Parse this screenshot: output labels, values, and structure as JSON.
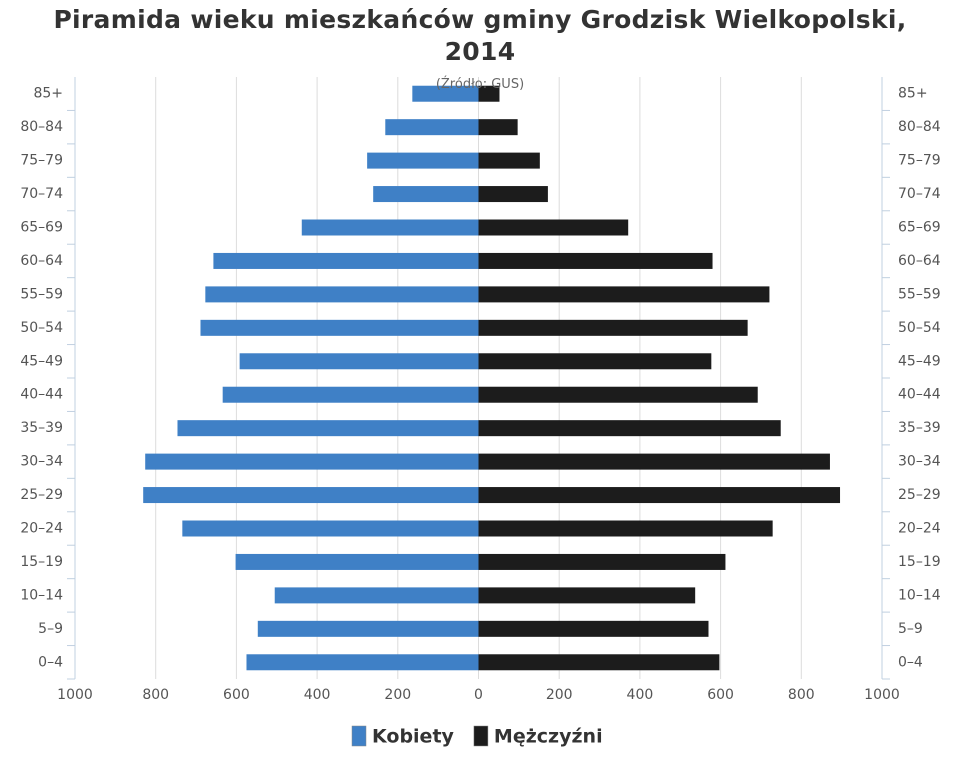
{
  "chart_data": {
    "type": "pyramid",
    "title": "Piramida wieku mieszkańców gminy Grodzisk Wielkopolski, 2014",
    "subtitle": "(Źródło: GUS)",
    "categories": [
      "0–4",
      "5–9",
      "10–14",
      "15–19",
      "20–24",
      "25–29",
      "30–34",
      "35–39",
      "40–44",
      "45–49",
      "50–54",
      "55–59",
      "60–64",
      "65–69",
      "70–74",
      "75–79",
      "80–84",
      "85+"
    ],
    "series": [
      {
        "name": "Kobiety",
        "color": "#3f80c6",
        "values": [
          -575,
          -547,
          -505,
          -602,
          -734,
          -831,
          -826,
          -746,
          -634,
          -592,
          -689,
          -677,
          -657,
          -438,
          -261,
          -276,
          -231,
          -164
        ]
      },
      {
        "name": "Mężczyźni",
        "color": "#1c1c1c",
        "values": [
          597,
          570,
          537,
          612,
          729,
          896,
          871,
          749,
          692,
          577,
          667,
          721,
          580,
          371,
          172,
          152,
          97,
          52
        ]
      }
    ],
    "xlim": [
      -1000,
      1000
    ],
    "xticks": [
      {
        "value": -1000,
        "label": "1000"
      },
      {
        "value": -800,
        "label": "800"
      },
      {
        "value": -600,
        "label": "600"
      },
      {
        "value": -400,
        "label": "400"
      },
      {
        "value": -200,
        "label": "200"
      },
      0,
      200,
      400,
      600,
      800,
      1000
    ],
    "grid": true
  }
}
